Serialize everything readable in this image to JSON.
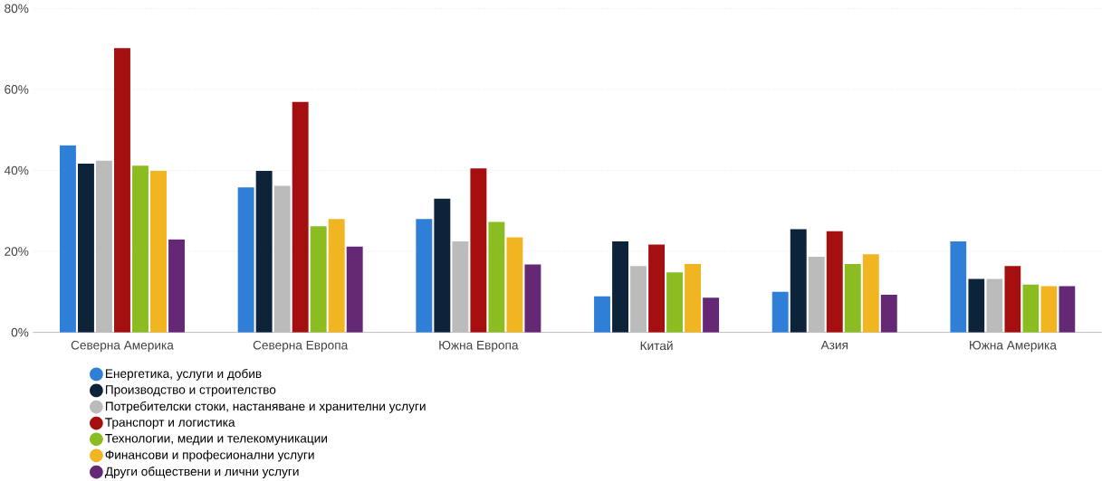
{
  "chart_data": {
    "type": "bar",
    "categories": [
      "Северна Америка",
      "Северна Европа",
      "Южна Европа",
      "Китай",
      "Азия",
      "Южна Америка"
    ],
    "series": [
      {
        "name": "Енергетика, услуги и добив",
        "color": "#2f7ed8",
        "values": [
          46.2,
          35.8,
          28,
          8.9,
          10,
          22.5
        ]
      },
      {
        "name": "Производство и строителство",
        "color": "#0d233a",
        "values": [
          41.7,
          39.9,
          33,
          22.5,
          25.5,
          13.2
        ]
      },
      {
        "name": "Потребителски стоки, настаняване и хранителни услуги",
        "color": "#bbbbbb",
        "values": [
          42.4,
          36.2,
          22.5,
          16.4,
          18.7,
          13.2
        ]
      },
      {
        "name": "Транспорт и логистика",
        "color": "#a50f0f",
        "values": [
          70.2,
          56.9,
          40.5,
          21.7,
          25,
          16.4
        ]
      },
      {
        "name": "Технологии, медии и телекомуникации",
        "color": "#8bbc21",
        "values": [
          41.2,
          26.2,
          27.3,
          14.8,
          16.9,
          11.8
        ]
      },
      {
        "name": "Финансови и професионални услуги",
        "color": "#f1b521",
        "values": [
          39.9,
          28,
          23.5,
          16.9,
          19.3,
          11.4
        ]
      },
      {
        "name": "Други обществени и лични услуги",
        "color": "#642875",
        "values": [
          23,
          21.2,
          16.8,
          8.6,
          9.3,
          11.4
        ]
      }
    ],
    "ylim": [
      0,
      80
    ],
    "yticks": [
      {
        "value": 0,
        "label": "0%"
      },
      {
        "value": 20,
        "label": "20%"
      },
      {
        "value": 40,
        "label": "40%"
      },
      {
        "value": 60,
        "label": "60%"
      },
      {
        "value": 80,
        "label": "80%"
      }
    ],
    "grid": "y",
    "legend": "bottom"
  }
}
